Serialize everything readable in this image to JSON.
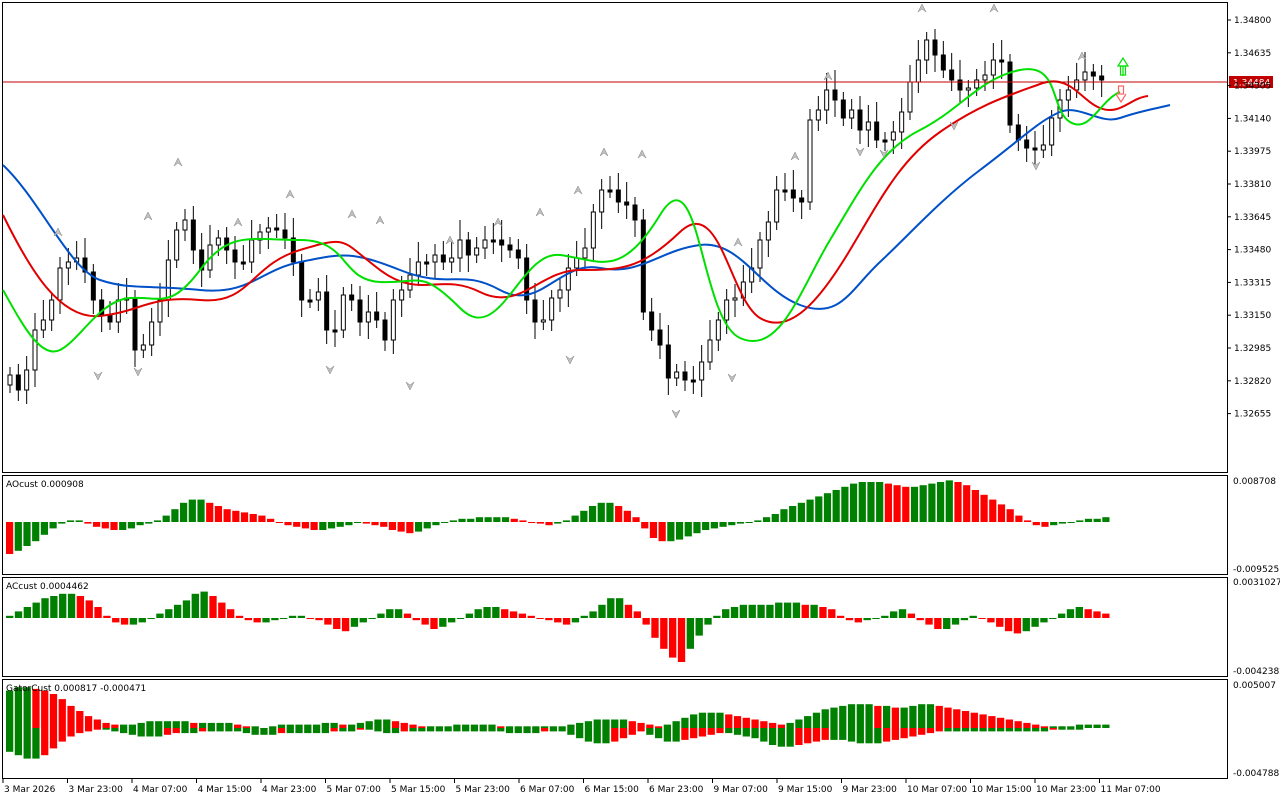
{
  "price_panel": {
    "symbol_hidden": true,
    "current_price_label": "1.34484",
    "price_ticks": [
      "1.34800",
      "1.34635",
      "1.34305",
      "1.34140",
      "1.33975",
      "1.33810",
      "1.33645",
      "1.33480",
      "1.33315",
      "1.33150",
      "1.32985",
      "1.32820",
      "1.32655"
    ],
    "line_colors": {
      "blue": "#0050c8",
      "red": "#e00000",
      "green": "#00e000"
    }
  },
  "ao_panel": {
    "label": "AOcust 0.000908",
    "top_tick": "0.008708",
    "bottom_tick": "-0.009525"
  },
  "ac_panel": {
    "label": "ACcust 0.0004462",
    "top_tick": "0.0031027",
    "bottom_tick": "-0.0042382"
  },
  "gator_panel": {
    "label": "GatorCust 0.000817 -0.000471",
    "top_tick": "0.005007",
    "bottom_tick": "-0.004788"
  },
  "time_axis": {
    "labels": [
      "3 Mar 2026",
      "3 Mar 23:00",
      "4 Mar 07:00",
      "4 Mar 15:00",
      "4 Mar 23:00",
      "5 Mar 07:00",
      "5 Mar 15:00",
      "5 Mar 23:00",
      "6 Mar 07:00",
      "6 Mar 15:00",
      "6 Mar 23:00",
      "9 Mar 07:00",
      "9 Mar 15:00",
      "9 Mar 23:00",
      "10 Mar 07:00",
      "10 Mar 15:00",
      "10 Mar 23:00",
      "11 Mar 07:00"
    ]
  },
  "colors": {
    "up_bar": "#008000",
    "down_bar": "#ff0000",
    "price_line": "#c00000",
    "label_bg": "#c00000"
  }
}
